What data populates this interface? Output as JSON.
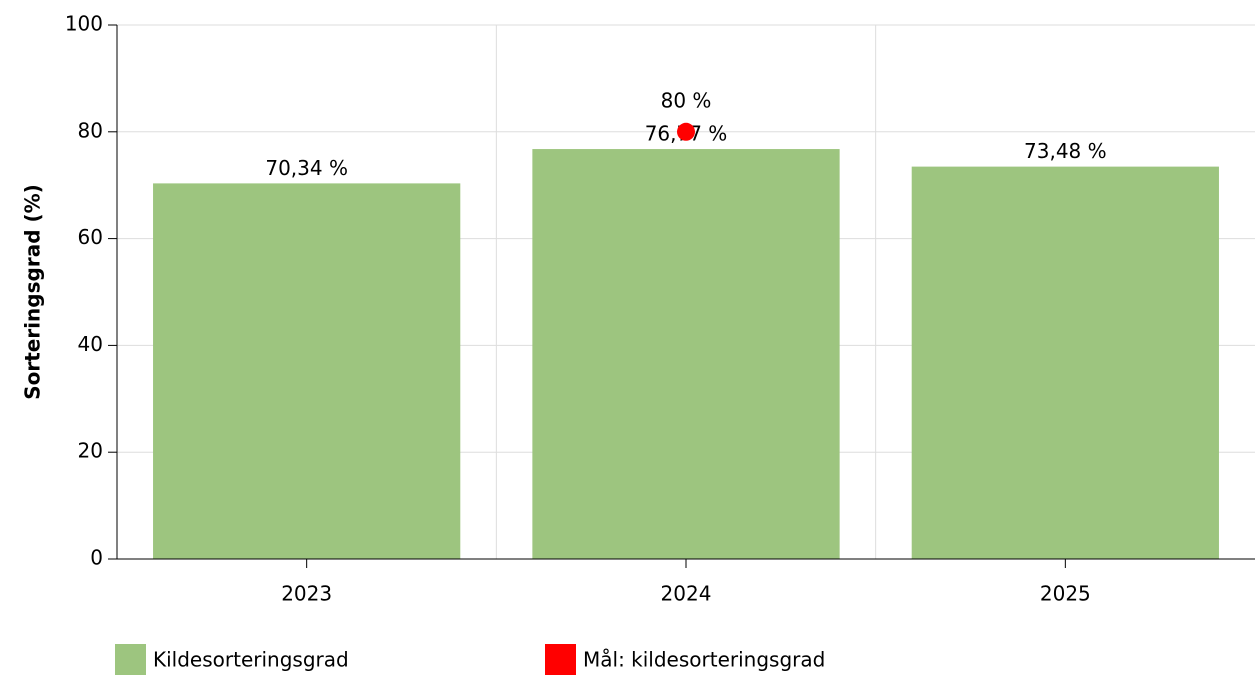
{
  "chart_data": {
    "type": "bar",
    "ylabel": "Sorteringsgrad (%)",
    "categories": [
      "2023",
      "2024",
      "2025"
    ],
    "series": [
      {
        "name": "Kildesorteringsgrad",
        "color": "#9dc57f",
        "type": "bar",
        "values": [
          70.34,
          76.77,
          73.48
        ],
        "value_labels": [
          "70,34 %",
          "76,77 %",
          "73,48 %"
        ]
      },
      {
        "name": "Mål: kildesorteringsgrad",
        "color": "#ff0000",
        "type": "scatter",
        "values": [
          null,
          80,
          null
        ],
        "value_labels": [
          null,
          "80 %",
          null
        ]
      }
    ],
    "ylim": [
      0,
      100
    ],
    "yticks": [
      0,
      20,
      40,
      60,
      80,
      100
    ],
    "grid": true,
    "legend": "bottom"
  }
}
